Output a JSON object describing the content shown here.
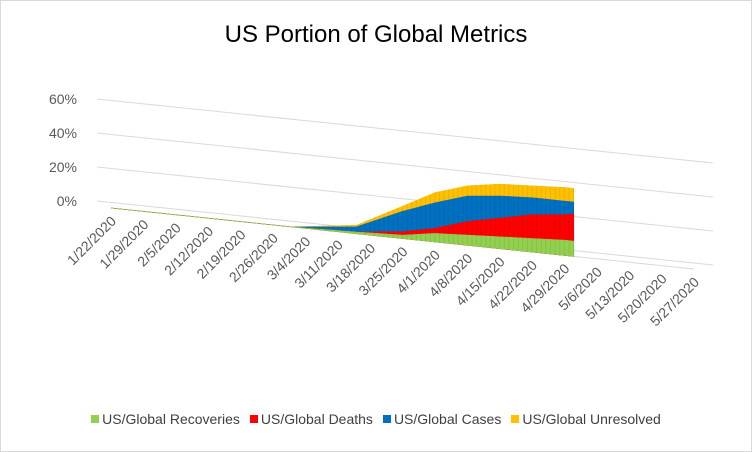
{
  "chart_data": {
    "type": "area",
    "title": "US Portion of Global Metrics",
    "xlabel": "",
    "ylabel": "",
    "ylim": [
      0,
      0.6
    ],
    "y_tick_labels": [
      "0%",
      "20%",
      "40%",
      "60%"
    ],
    "y_tick_values": [
      0,
      0.2,
      0.4,
      0.6
    ],
    "x_tick_labels": [
      "1/22/2020",
      "1/29/2020",
      "2/5/2020",
      "2/12/2020",
      "2/19/2020",
      "2/26/2020",
      "3/4/2020",
      "3/11/2020",
      "3/18/2020",
      "3/25/2020",
      "4/1/2020",
      "4/8/2020",
      "4/15/2020",
      "4/22/2020",
      "4/29/2020",
      "5/6/2020",
      "5/13/2020",
      "5/20/2020",
      "5/27/2020"
    ],
    "x_start": "1/22/2020",
    "x_end": "5/27/2020",
    "data_end": "5/1/2020",
    "grid": true,
    "view": "3d",
    "legend_position": "bottom",
    "series": [
      {
        "name": "US/Global Recoveries",
        "color": "#92d050",
        "points": [
          [
            "1/22/2020",
            0
          ],
          [
            "3/1/2020",
            0
          ],
          [
            "3/15/2020",
            0.01
          ],
          [
            "3/25/2020",
            0.02
          ],
          [
            "4/1/2020",
            0.05
          ],
          [
            "4/8/2020",
            0.06
          ],
          [
            "4/15/2020",
            0.07
          ],
          [
            "4/22/2020",
            0.08
          ],
          [
            "4/29/2020",
            0.09
          ],
          [
            "5/1/2020",
            0.09
          ]
        ]
      },
      {
        "name": "US/Global Deaths",
        "color": "#ff0000",
        "points": [
          [
            "1/22/2020",
            0
          ],
          [
            "3/1/2020",
            0
          ],
          [
            "3/15/2020",
            0.01
          ],
          [
            "3/25/2020",
            0.04
          ],
          [
            "4/1/2020",
            0.08
          ],
          [
            "4/8/2020",
            0.14
          ],
          [
            "4/15/2020",
            0.18
          ],
          [
            "4/22/2020",
            0.22
          ],
          [
            "4/29/2020",
            0.24
          ],
          [
            "5/1/2020",
            0.25
          ]
        ]
      },
      {
        "name": "US/Global Cases",
        "color": "#0070c0",
        "points": [
          [
            "1/22/2020",
            0
          ],
          [
            "3/1/2020",
            0
          ],
          [
            "3/15/2020",
            0.04
          ],
          [
            "3/25/2020",
            0.16
          ],
          [
            "4/1/2020",
            0.23
          ],
          [
            "4/8/2020",
            0.29
          ],
          [
            "4/15/2020",
            0.31
          ],
          [
            "4/22/2020",
            0.32
          ],
          [
            "4/29/2020",
            0.32
          ],
          [
            "5/1/2020",
            0.32
          ]
        ]
      },
      {
        "name": "US/Global Unresolved",
        "color": "#ffc000",
        "points": [
          [
            "1/22/2020",
            0
          ],
          [
            "3/1/2020",
            0
          ],
          [
            "3/15/2020",
            0.05
          ],
          [
            "3/25/2020",
            0.19
          ],
          [
            "4/1/2020",
            0.29
          ],
          [
            "4/8/2020",
            0.35
          ],
          [
            "4/15/2020",
            0.38
          ],
          [
            "4/22/2020",
            0.39
          ],
          [
            "4/29/2020",
            0.4
          ],
          [
            "5/1/2020",
            0.4
          ]
        ]
      }
    ]
  }
}
